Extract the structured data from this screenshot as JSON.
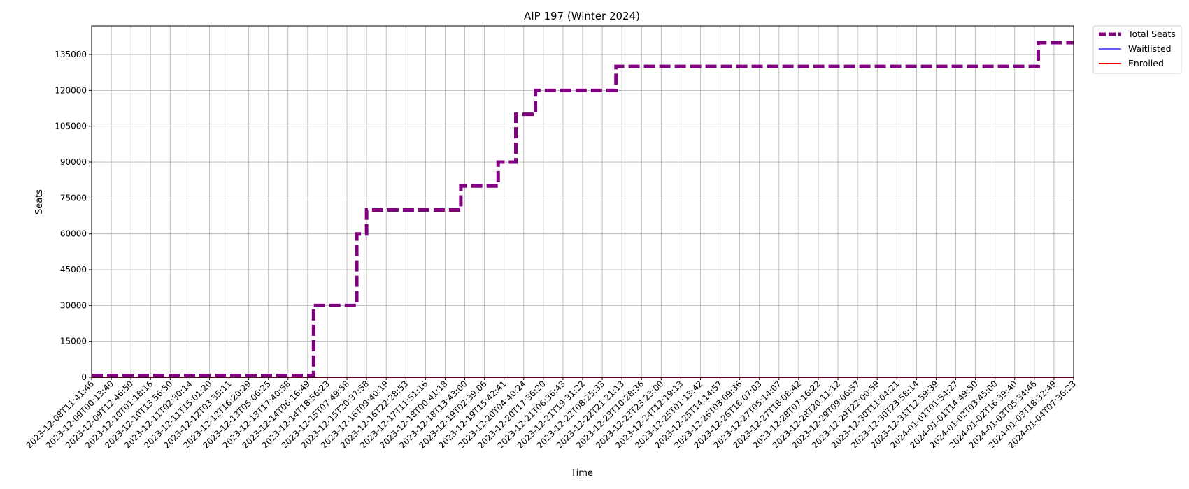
{
  "chart_data": {
    "type": "line",
    "title": "AIP 197 (Winter 2024)",
    "xlabel": "Time",
    "ylabel": "Seats",
    "ylim": [
      0,
      147000
    ],
    "y_ticks": [
      0,
      15000,
      30000,
      45000,
      60000,
      75000,
      90000,
      105000,
      120000,
      135000
    ],
    "grid": true,
    "legend_placement": "outside-top-right",
    "x_tick_labels": [
      "2023-12-08T11:41:46",
      "2023-12-09T00:13:40",
      "2023-12-09T12:46:50",
      "2023-12-10T01:18:16",
      "2023-12-10T13:56:50",
      "2023-12-11T02:30:14",
      "2023-12-11T15:01:20",
      "2023-12-12T03:35:11",
      "2023-12-12T16:20:29",
      "2023-12-13T05:06:25",
      "2023-12-13T17:40:58",
      "2023-12-14T06:16:49",
      "2023-12-14T18:56:23",
      "2023-12-15T07:49:58",
      "2023-12-15T20:37:58",
      "2023-12-16T09:40:19",
      "2023-12-16T22:28:53",
      "2023-12-17T11:51:16",
      "2023-12-18T00:41:18",
      "2023-12-18T13:43:00",
      "2023-12-19T02:39:06",
      "2023-12-19T15:42:41",
      "2023-12-20T04:40:24",
      "2023-12-20T17:36:20",
      "2023-12-21T06:36:43",
      "2023-12-21T19:31:22",
      "2023-12-22T08:25:33",
      "2023-12-22T21:21:13",
      "2023-12-23T10:28:36",
      "2023-12-23T23:23:00",
      "2023-12-24T12:19:13",
      "2023-12-25T01:13:42",
      "2023-12-25T14:14:57",
      "2023-12-26T03:09:36",
      "2023-12-26T16:07:03",
      "2023-12-27T05:14:07",
      "2023-12-27T18:08:42",
      "2023-12-28T07:16:22",
      "2023-12-28T20:11:12",
      "2023-12-29T09:06:57",
      "2023-12-29T22:00:59",
      "2023-12-30T11:04:21",
      "2023-12-30T23:58:14",
      "2023-12-31T12:59:39",
      "2024-01-01T01:54:27",
      "2024-01-01T14:49:50",
      "2024-01-02T03:45:00",
      "2024-01-02T16:39:40",
      "2024-01-03T05:34:46",
      "2024-01-03T18:32:49",
      "2024-01-04T07:36:23"
    ],
    "series": [
      {
        "name": "Total Seats",
        "color": "#800080",
        "style": "dashed-step",
        "points": [
          {
            "x": 0.0,
            "y": 700
          },
          {
            "x": 11.3,
            "y": 700
          },
          {
            "x": 11.3,
            "y": 30000
          },
          {
            "x": 13.5,
            "y": 30000
          },
          {
            "x": 13.5,
            "y": 60000
          },
          {
            "x": 14.0,
            "y": 60000
          },
          {
            "x": 14.0,
            "y": 70000
          },
          {
            "x": 18.8,
            "y": 70000
          },
          {
            "x": 18.8,
            "y": 80000
          },
          {
            "x": 20.7,
            "y": 80000
          },
          {
            "x": 20.7,
            "y": 90000
          },
          {
            "x": 21.6,
            "y": 90000
          },
          {
            "x": 21.6,
            "y": 110000
          },
          {
            "x": 22.6,
            "y": 110000
          },
          {
            "x": 22.6,
            "y": 120000
          },
          {
            "x": 26.7,
            "y": 120000
          },
          {
            "x": 26.7,
            "y": 130000
          },
          {
            "x": 48.2,
            "y": 130000
          },
          {
            "x": 48.2,
            "y": 140000
          },
          {
            "x": 50.0,
            "y": 140000
          }
        ]
      },
      {
        "name": "Waitlisted",
        "color": "#0000ff",
        "style": "thin",
        "points": [
          {
            "x": 0.0,
            "y": 0
          },
          {
            "x": 50.0,
            "y": 0
          }
        ]
      },
      {
        "name": "Enrolled",
        "color": "#ff0000",
        "style": "solid",
        "points": [
          {
            "x": 0.0,
            "y": 0
          },
          {
            "x": 50.0,
            "y": 0
          }
        ]
      }
    ]
  }
}
